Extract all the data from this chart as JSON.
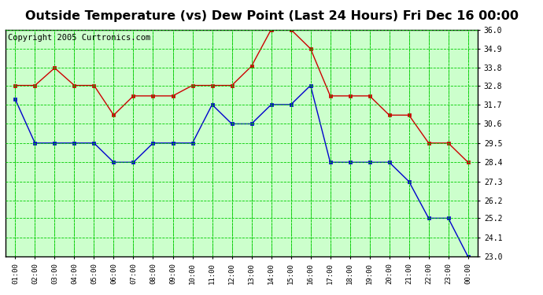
{
  "title": "Outside Temperature (vs) Dew Point (Last 24 Hours) Fri Dec 16 00:00",
  "copyright": "Copyright 2005 Curtronics.com",
  "x_labels": [
    "01:00",
    "02:00",
    "03:00",
    "04:00",
    "05:00",
    "06:00",
    "07:00",
    "08:00",
    "09:00",
    "10:00",
    "11:00",
    "12:00",
    "13:00",
    "14:00",
    "15:00",
    "16:00",
    "17:00",
    "18:00",
    "19:00",
    "20:00",
    "21:00",
    "22:00",
    "23:00",
    "00:00"
  ],
  "temp_values": [
    32.8,
    32.8,
    33.8,
    32.8,
    32.8,
    31.1,
    32.2,
    32.2,
    32.2,
    32.8,
    32.8,
    32.8,
    33.9,
    36.0,
    36.0,
    34.9,
    32.2,
    32.2,
    32.2,
    31.1,
    31.1,
    29.5,
    29.5,
    28.4
  ],
  "dew_values": [
    32.0,
    29.5,
    29.5,
    29.5,
    29.5,
    28.4,
    28.4,
    29.5,
    29.5,
    29.5,
    31.7,
    30.6,
    30.6,
    31.7,
    31.7,
    32.8,
    28.4,
    28.4,
    28.4,
    28.4,
    27.3,
    25.2,
    25.2,
    23.0
  ],
  "temp_color": "#cc0000",
  "dew_color": "#0000cc",
  "bg_color": "#ffffff",
  "plot_bg_color": "#ccffcc",
  "grid_color": "#00cc00",
  "ylim_min": 23.0,
  "ylim_max": 36.0,
  "yticks": [
    23.0,
    24.1,
    25.2,
    26.2,
    27.3,
    28.4,
    29.5,
    30.6,
    31.7,
    32.8,
    33.8,
    34.9,
    36.0
  ],
  "title_fontsize": 11.5,
  "copyright_fontsize": 7.5
}
